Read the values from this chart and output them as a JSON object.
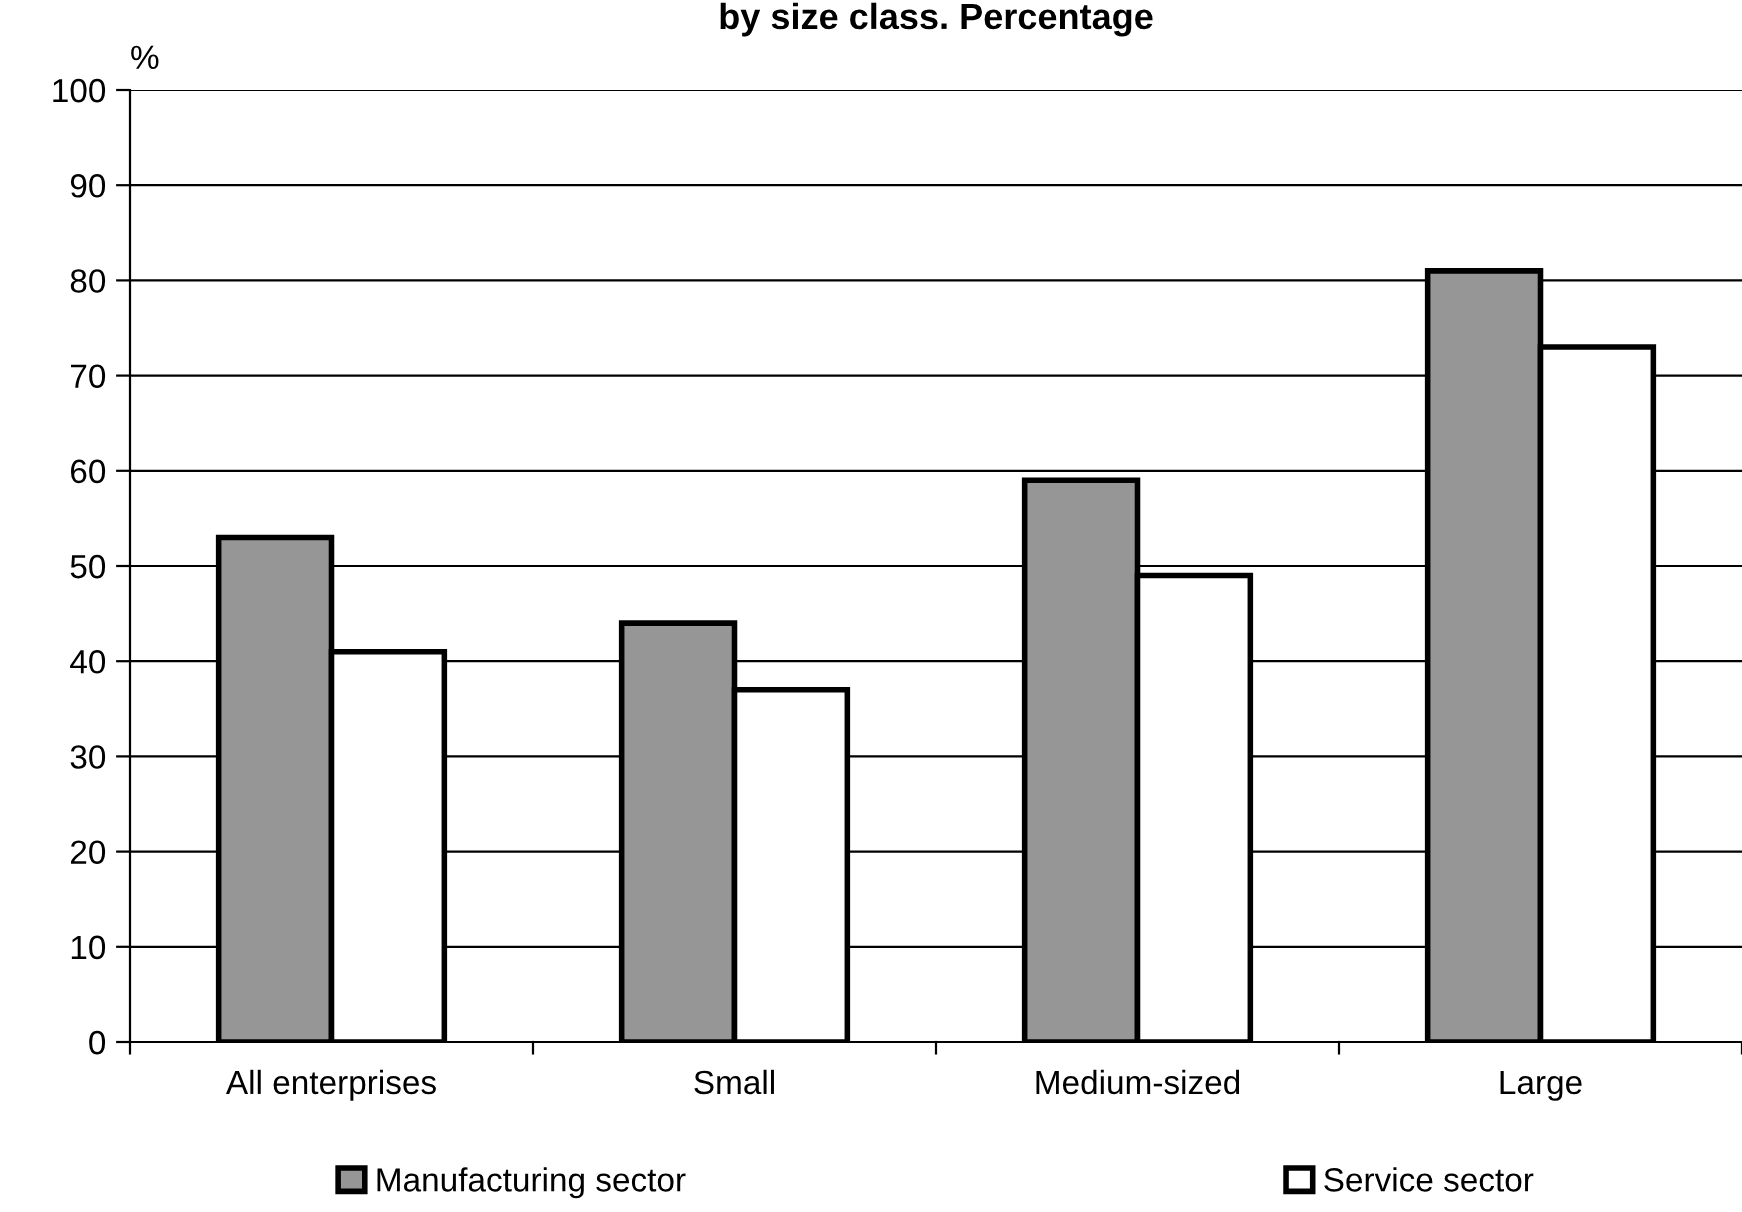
{
  "chart_data": {
    "type": "bar",
    "title": "by size class. Percentage",
    "ylabel": "%",
    "categories": [
      "All enterprises",
      "Small",
      "Medium-sized",
      "Large"
    ],
    "series": [
      {
        "name": "Manufacturing sector",
        "color": "#969696",
        "values": [
          53,
          44,
          59,
          81
        ]
      },
      {
        "name": "Service sector",
        "color": "#ffffff",
        "values": [
          41,
          37,
          49,
          73
        ]
      }
    ],
    "ylim": [
      0,
      100
    ],
    "yticks": [
      0,
      10,
      20,
      30,
      40,
      50,
      60,
      70,
      80,
      90,
      100
    ],
    "grid": "y",
    "legend": "bottom"
  }
}
